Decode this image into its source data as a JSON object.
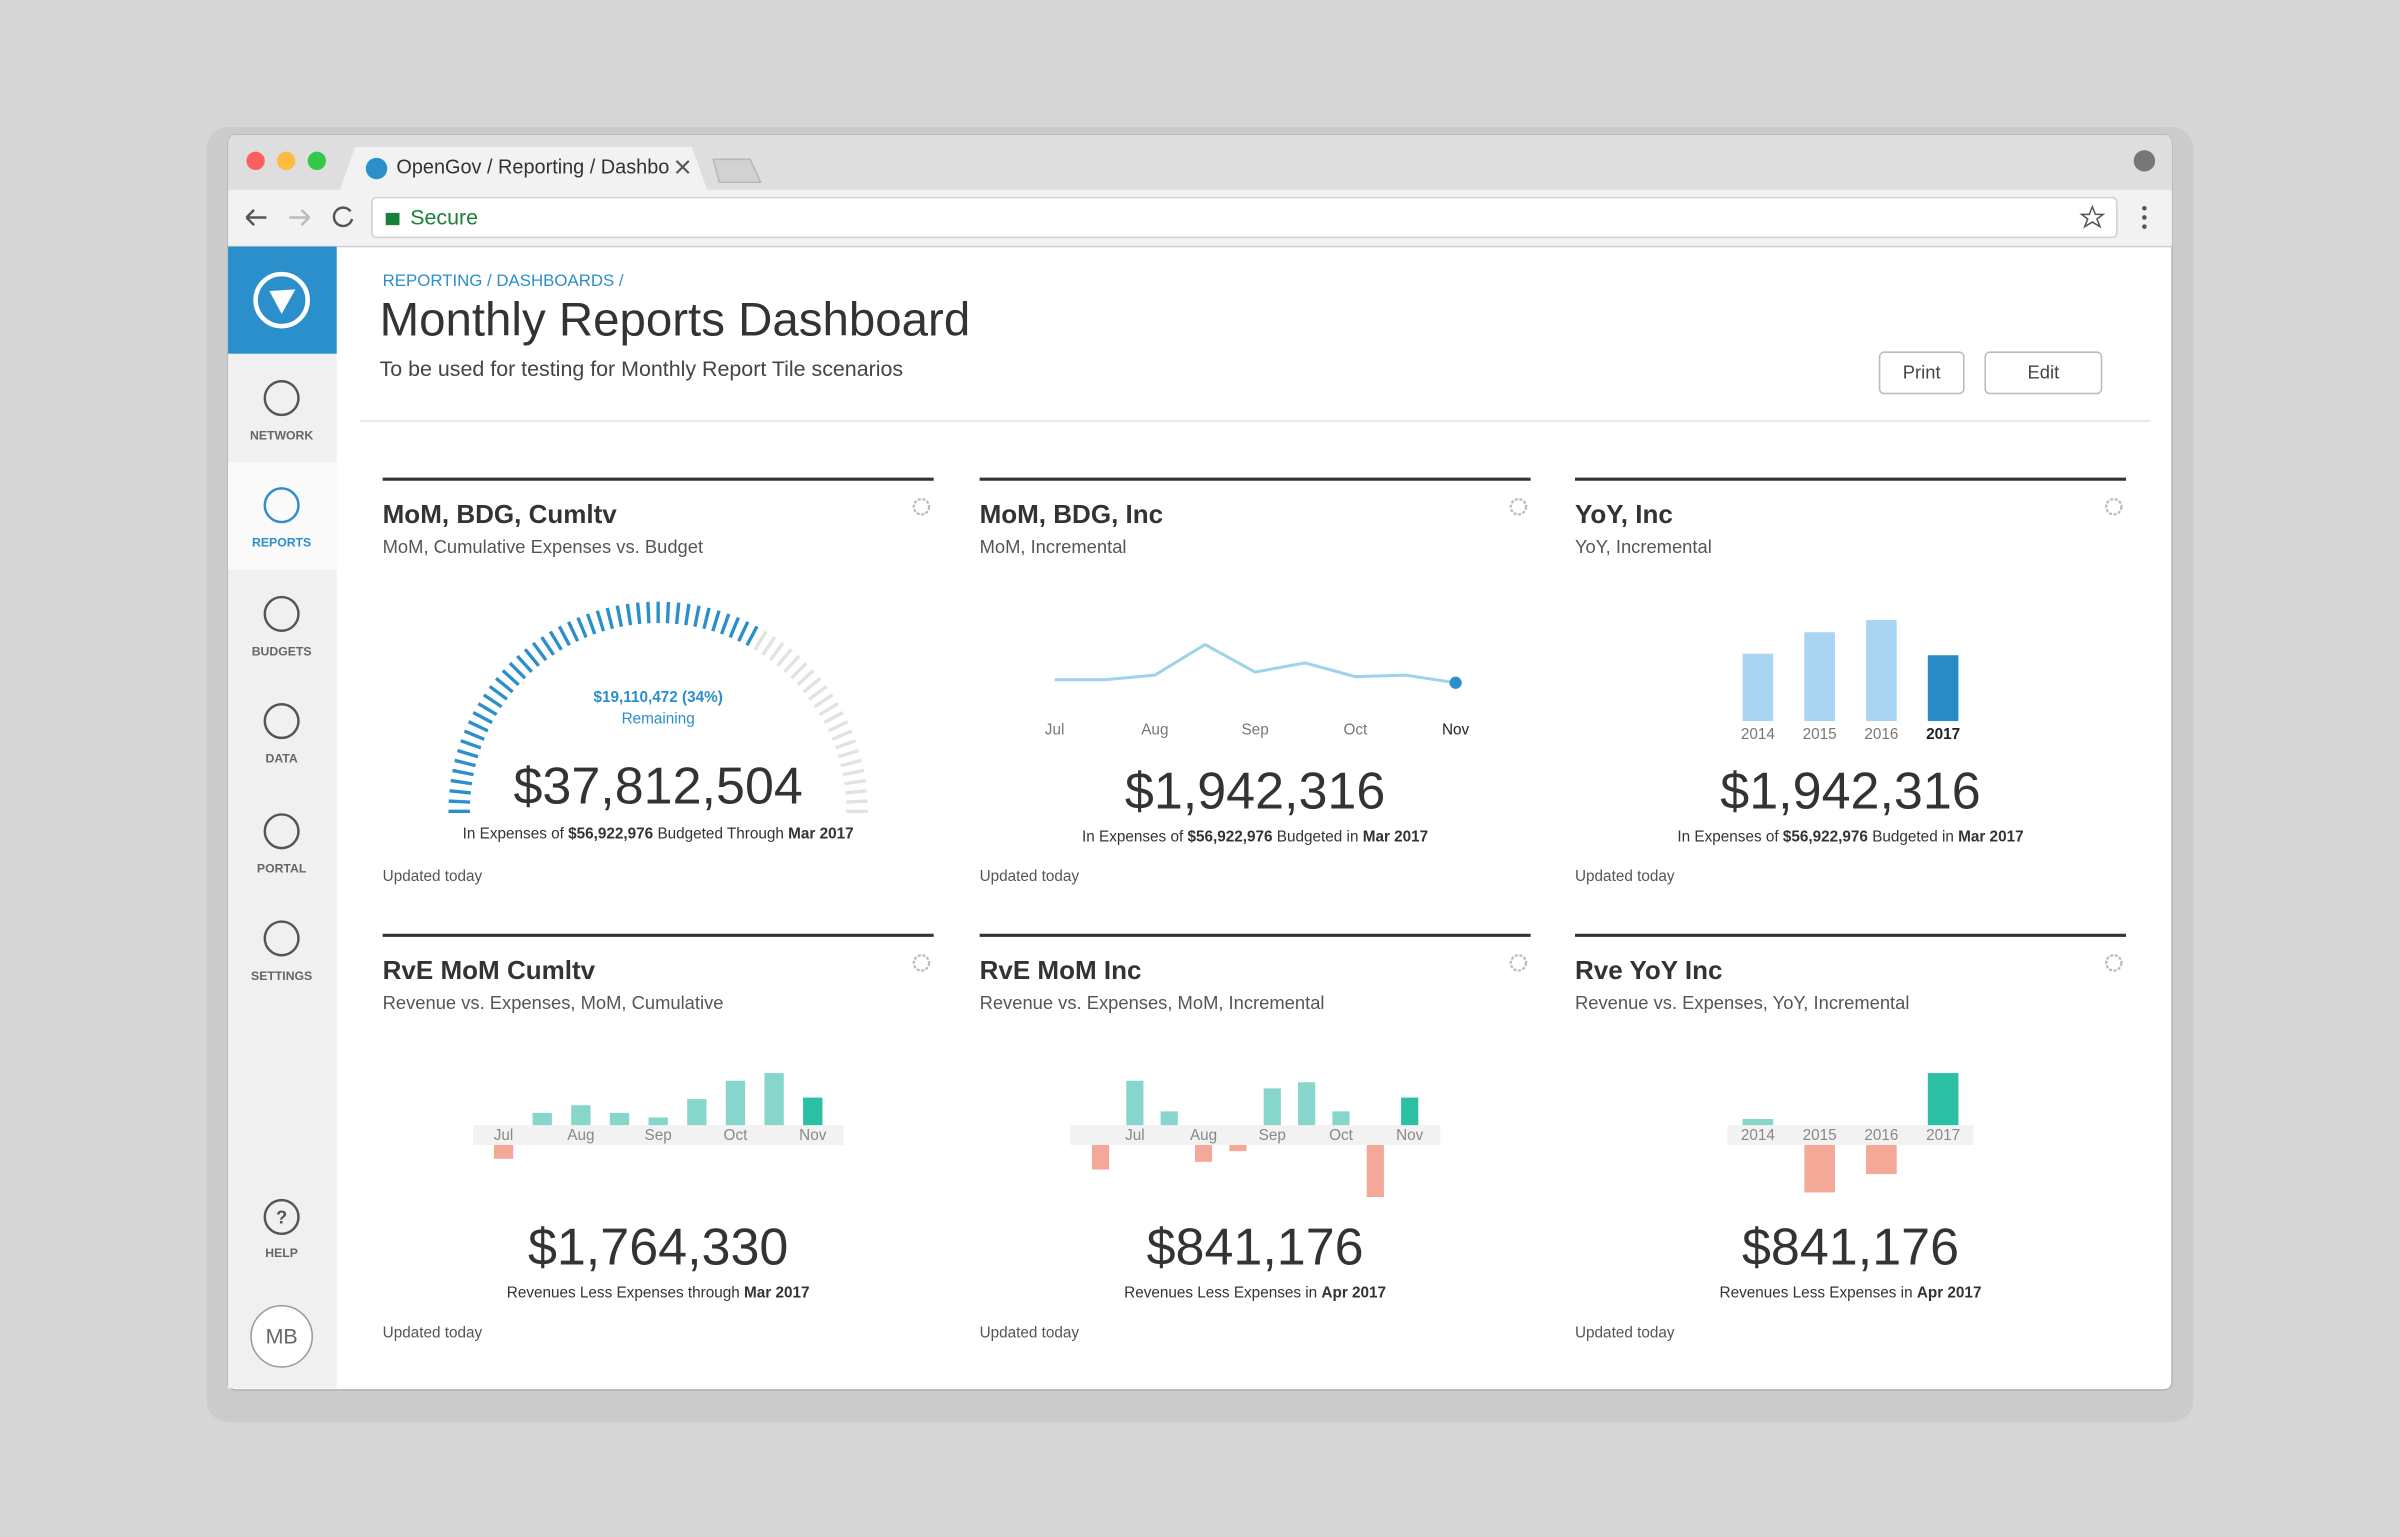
{
  "browser": {
    "tab_title": "OpenGov / Reporting / Dashbo",
    "address": "Secure"
  },
  "sidebar": {
    "items": [
      "NETWORK",
      "REPORTS",
      "BUDGETS",
      "DATA",
      "PORTAL",
      "SETTINGS"
    ],
    "help": "HELP",
    "user": "MB"
  },
  "header": {
    "breadcrumb": "REPORTING / DASHBOARDS /",
    "title": "Monthly Reports Dashboard",
    "subtitle": "To be used for testing for Monthly Report Tile scenarios",
    "buttons": [
      "Print",
      "Edit"
    ]
  },
  "tiles": [
    {
      "title": "MoM, BDG, Cumltv",
      "subtitle": "MoM, Cumulative Expenses vs. Budget",
      "chart": {
        "type": "gauge",
        "percent_remaining": 34,
        "label": "$19,110,472 (34%)",
        "label2": "Remaining",
        "color": "#2b8fcb",
        "track_color": "#e2e2e2"
      },
      "amount": "$37,812,504",
      "caption": [
        "In Expenses of ",
        "$56,922,976",
        " Budgeted Through ",
        "Mar 2017"
      ],
      "updated": "Updated today"
    },
    {
      "title": "MoM, BDG, Inc",
      "subtitle": "MoM, Incremental",
      "chart": {
        "type": "line",
        "categories": [
          "Jul",
          null,
          "Aug",
          null,
          "Sep",
          null,
          "Oct",
          null,
          "Nov"
        ],
        "values": [
          16,
          16,
          19,
          39,
          21,
          27,
          18,
          19,
          14
        ],
        "color": "#9fd3ea",
        "dot_color": "#2b8fcb"
      },
      "amount": "$1,942,316",
      "caption": [
        "In Expenses of ",
        "$56,922,976",
        " Budgeted in ",
        "Mar 2017"
      ],
      "updated": "Updated today"
    },
    {
      "title": "YoY, Inc",
      "subtitle": "YoY, Incremental",
      "chart": {
        "type": "bar",
        "categories": [
          "2014",
          "2015",
          "2016",
          "2017"
        ],
        "values": [
          44,
          58,
          66,
          43
        ],
        "colors": [
          "#a9d5f2",
          "#a9d5f2",
          "#a9d5f2",
          "#2a8ac6"
        ]
      },
      "amount": "$1,942,316",
      "caption": [
        "In Expenses of ",
        "$56,922,976",
        " Budgeted in ",
        "Mar 2017"
      ],
      "updated": "Updated today"
    },
    {
      "title": "RvE MoM Cumltv",
      "subtitle": "Revenue vs. Expenses, MoM, Cumulative",
      "chart": {
        "type": "diverging",
        "categories": [
          "Jul",
          null,
          "Aug",
          null,
          "Sep",
          null,
          "Oct",
          null,
          "Nov"
        ],
        "values": [
          -9,
          8,
          13,
          8,
          5,
          17,
          29,
          34,
          18
        ],
        "colors": [
          "#f4a898",
          "#86d6cc",
          "#86d6cc",
          "#86d6cc",
          "#86d6cc",
          "#86d6cc",
          "#86d6cc",
          "#86d6cc",
          "#2bbfa4"
        ]
      },
      "amount": "$1,764,330",
      "caption": [
        "Revenues Less Expenses through ",
        "Mar 2017"
      ],
      "updated": "Updated today"
    },
    {
      "title": "RvE MoM Inc",
      "subtitle": "Revenue vs. Expenses, MoM, Incremental",
      "chart": {
        "type": "diverging",
        "categories": [
          null,
          "Jul",
          null,
          "Aug",
          null,
          "Sep",
          null,
          "Oct",
          null,
          "Nov"
        ],
        "values": [
          -16,
          29,
          9,
          -11,
          -4,
          24,
          28,
          9,
          -34,
          18
        ],
        "colors": [
          "#f4a898",
          "#86d6cc",
          "#86d6cc",
          "#f4a898",
          "#f4a898",
          "#86d6cc",
          "#86d6cc",
          "#86d6cc",
          "#f4a898",
          "#2bbfa4"
        ]
      },
      "amount": "$841,176",
      "caption": [
        "Revenues Less Expenses in ",
        "Apr 2017"
      ],
      "updated": "Updated today"
    },
    {
      "title": "Rve YoY Inc",
      "subtitle": "Revenue vs. Expenses, YoY, Incremental",
      "chart": {
        "type": "diverging",
        "categories": [
          "2014",
          "2015",
          "2016",
          "2017"
        ],
        "values": [
          4,
          -31,
          -19,
          34
        ],
        "colors": [
          "#86d6cc",
          "#f4a898",
          "#f4a898",
          "#2bbfa4"
        ]
      },
      "amount": "$841,176",
      "caption": [
        "Revenues Less Expenses in ",
        "Apr 2017"
      ],
      "updated": "Updated today"
    }
  ]
}
